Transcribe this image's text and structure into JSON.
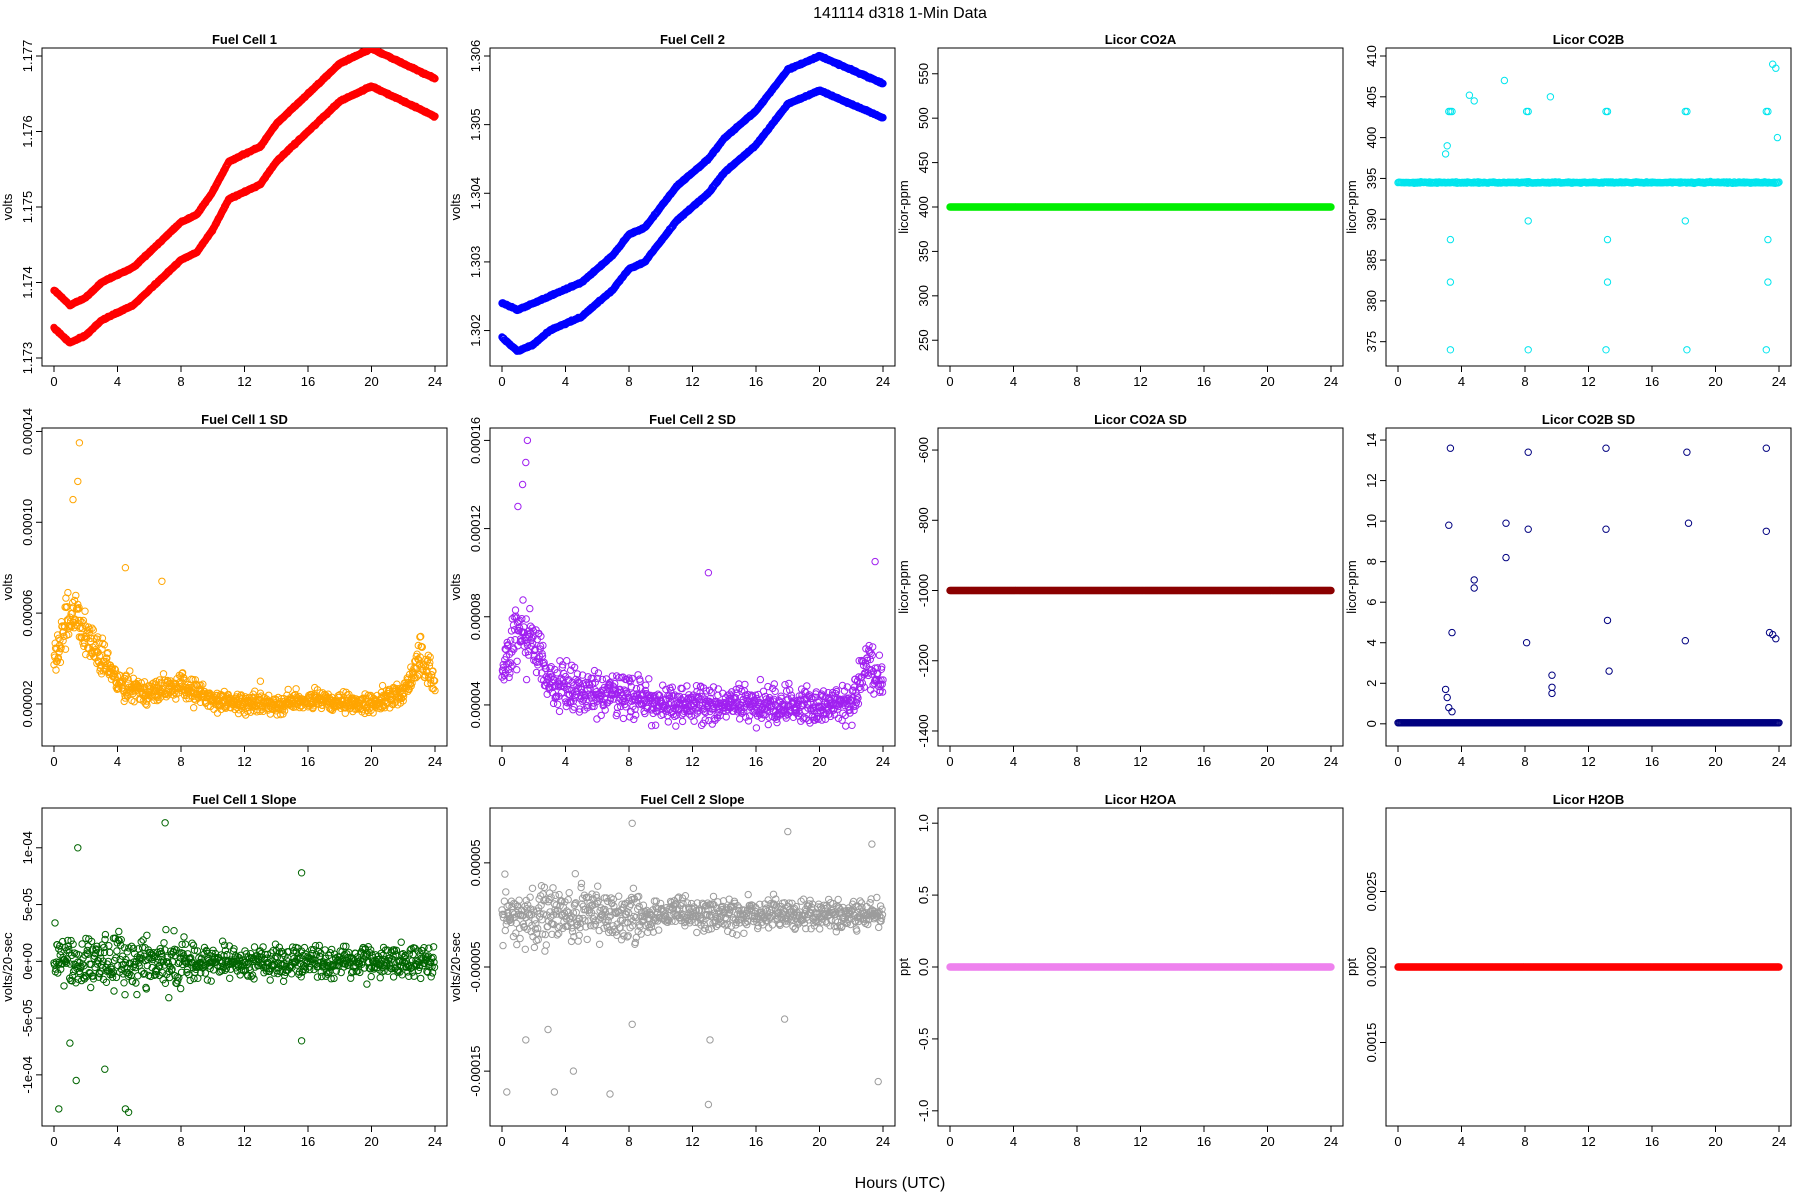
{
  "page": {
    "suptitle": "141114   d318   1-Min Data",
    "xlabel": "Hours (UTC)"
  },
  "chart_data": [
    {
      "type": "scatter",
      "title": "Fuel Cell 1",
      "xlabel": "",
      "ylabel": "volts",
      "xlim": [
        0,
        24
      ],
      "ylim": [
        1.173,
        1.177
      ],
      "xticks": [
        0,
        4,
        8,
        12,
        16,
        20,
        24
      ],
      "yticks": [
        "1.173",
        "1.174",
        "1.175",
        "1.176",
        "1.177"
      ],
      "color": "#ff0000",
      "marker": "open-circle",
      "series": [
        {
          "x": [
            0,
            1,
            2,
            3,
            4,
            5,
            6,
            7,
            8,
            9,
            10,
            11,
            12,
            13,
            14,
            15,
            16,
            17,
            18,
            19,
            20,
            21,
            22,
            23,
            24
          ],
          "y": [
            1.1739,
            1.1737,
            1.1738,
            1.174,
            1.1741,
            1.1742,
            1.1744,
            1.1746,
            1.1748,
            1.1749,
            1.1752,
            1.1756,
            1.1757,
            1.1758,
            1.1761,
            1.1763,
            1.1765,
            1.1767,
            1.1769,
            1.177,
            1.1771,
            1.177,
            1.1769,
            1.1768,
            1.1767
          ]
        },
        {
          "x": [
            0,
            1,
            2,
            3,
            4,
            5,
            6,
            7,
            8,
            9,
            10,
            11,
            12,
            13,
            14,
            15,
            16,
            17,
            18,
            19,
            20,
            21,
            22,
            23,
            24
          ],
          "y": [
            1.1734,
            1.1732,
            1.1733,
            1.1735,
            1.1736,
            1.1737,
            1.1739,
            1.1741,
            1.1743,
            1.1744,
            1.1747,
            1.1751,
            1.1752,
            1.1753,
            1.1756,
            1.1758,
            1.176,
            1.1762,
            1.1764,
            1.1765,
            1.1766,
            1.1765,
            1.1764,
            1.1763,
            1.1762
          ]
        }
      ]
    },
    {
      "type": "scatter",
      "title": "Fuel Cell 2",
      "xlabel": "",
      "ylabel": "volts",
      "xlim": [
        0,
        24
      ],
      "ylim": [
        1.3016,
        1.306
      ],
      "xticks": [
        0,
        4,
        8,
        12,
        16,
        20,
        24
      ],
      "yticks": [
        "1.302",
        "1.303",
        "1.304",
        "1.305",
        "1.306"
      ],
      "color": "#0000ff",
      "marker": "open-circle",
      "series": [
        {
          "x": [
            0,
            1,
            2,
            3,
            4,
            5,
            6,
            7,
            8,
            9,
            10,
            11,
            12,
            13,
            14,
            15,
            16,
            17,
            18,
            19,
            20,
            21,
            22,
            23,
            24
          ],
          "y": [
            1.3024,
            1.3023,
            1.3024,
            1.3025,
            1.3026,
            1.3027,
            1.3029,
            1.3031,
            1.3034,
            1.3035,
            1.3038,
            1.3041,
            1.3043,
            1.3045,
            1.3048,
            1.305,
            1.3052,
            1.3055,
            1.3058,
            1.3059,
            1.306,
            1.3059,
            1.3058,
            1.3057,
            1.3056
          ]
        },
        {
          "x": [
            0,
            1,
            2,
            3,
            4,
            5,
            6,
            7,
            8,
            9,
            10,
            11,
            12,
            13,
            14,
            15,
            16,
            17,
            18,
            19,
            20,
            21,
            22,
            23,
            24
          ],
          "y": [
            1.3019,
            1.3017,
            1.3018,
            1.302,
            1.3021,
            1.3022,
            1.3024,
            1.3026,
            1.3029,
            1.303,
            1.3033,
            1.3036,
            1.3038,
            1.304,
            1.3043,
            1.3045,
            1.3047,
            1.305,
            1.3053,
            1.3054,
            1.3055,
            1.3054,
            1.3053,
            1.3052,
            1.3051
          ]
        }
      ]
    },
    {
      "type": "scatter",
      "title": "Licor CO2A",
      "xlabel": "",
      "ylabel": "licor-ppm",
      "xlim": [
        0,
        24
      ],
      "ylim": [
        230,
        570
      ],
      "xticks": [
        0,
        4,
        8,
        12,
        16,
        20,
        24
      ],
      "yticks": [
        "250",
        "300",
        "350",
        "400",
        "450",
        "500",
        "550"
      ],
      "color": "#00ee00",
      "marker": "filled-circle",
      "series": [
        {
          "x": [
            0,
            24
          ],
          "y": [
            400,
            400
          ],
          "constant": true
        }
      ]
    },
    {
      "type": "scatter",
      "title": "Licor CO2B",
      "xlabel": "",
      "ylabel": "licor-ppm",
      "xlim": [
        0,
        24
      ],
      "ylim": [
        373,
        410
      ],
      "xticks": [
        0,
        4,
        8,
        12,
        16,
        20,
        24
      ],
      "yticks": [
        "375",
        "380",
        "385",
        "390",
        "395",
        "400",
        "405",
        "410"
      ],
      "color": "#00e5ee",
      "marker": "open-circle",
      "series": [
        {
          "x": [
            0,
            24
          ],
          "y": [
            394.5,
            394.5
          ],
          "constant": true
        },
        {
          "x": [
            3.2,
            3.3,
            3.4,
            8.1,
            8.2,
            13.1,
            13.2,
            18.1,
            18.2,
            23.2,
            23.3,
            3.3,
            8.2,
            13.1,
            18.2,
            23.2,
            3.3,
            8.2,
            13.2,
            18.1,
            23.3,
            3.3,
            13.2,
            23.3,
            4.5,
            4.8,
            6.7,
            9.6,
            3,
            3.1,
            23.6,
            23.8,
            23.9
          ],
          "y": [
            403.2,
            403.2,
            403.2,
            403.2,
            403.2,
            403.2,
            403.2,
            403.2,
            403.2,
            403.2,
            403.2,
            374,
            374,
            374,
            374,
            374,
            387.5,
            389.8,
            387.5,
            389.8,
            387.5,
            382.3,
            382.3,
            382.3,
            405.2,
            404.5,
            407,
            405,
            398,
            399,
            409,
            408.5,
            400
          ]
        }
      ]
    },
    {
      "type": "scatter",
      "title": "Fuel Cell 1 SD",
      "xlabel": "",
      "ylabel": "volts",
      "xlim": [
        0,
        24
      ],
      "ylim": [
        5e-06,
        0.000138
      ],
      "xticks": [
        0,
        4,
        8,
        12,
        16,
        20,
        24
      ],
      "yticks": [
        "0.00002",
        "0.00006",
        "0.00010",
        "0.00014"
      ],
      "color": "#ffa500",
      "marker": "open-circle",
      "series": [
        {
          "x": [
            0,
            1,
            2,
            3,
            4,
            6,
            8,
            10,
            12,
            14,
            16,
            18,
            20,
            22,
            23,
            24
          ],
          "y": [
            4e-05,
            6e-05,
            5e-05,
            4e-05,
            3e-05,
            2.5e-05,
            2.8e-05,
            2.2e-05,
            2e-05,
            2e-05,
            2.2e-05,
            2e-05,
            2e-05,
            2.5e-05,
            4e-05,
            3e-05
          ]
        },
        {
          "x": [
            1.2,
            1.5,
            1.6,
            4.5,
            6.8,
            13
          ],
          "y": [
            0.00011,
            0.000118,
            0.000135,
            8e-05,
            7.4e-05,
            3e-05
          ]
        }
      ]
    },
    {
      "type": "scatter",
      "title": "Fuel Cell 2 SD",
      "xlabel": "",
      "ylabel": "volts",
      "xlim": [
        0,
        24
      ],
      "ylim": [
        2.5e-05,
        0.000162
      ],
      "xticks": [
        0,
        4,
        8,
        12,
        16,
        20,
        24
      ],
      "yticks": [
        "0.00004",
        "0.00008",
        "0.00012",
        "0.00016"
      ],
      "color": "#a020f0",
      "marker": "open-circle",
      "series": [
        {
          "x": [
            0,
            1,
            2,
            3,
            4,
            6,
            8,
            10,
            12,
            14,
            16,
            18,
            20,
            22,
            23,
            24
          ],
          "y": [
            5.5e-05,
            7.5e-05,
            7e-05,
            5e-05,
            4.8e-05,
            4.5e-05,
            4.5e-05,
            4e-05,
            4e-05,
            4e-05,
            4e-05,
            4e-05,
            4e-05,
            4e-05,
            6e-05,
            5e-05
          ]
        },
        {
          "x": [
            1,
            1.3,
            1.5,
            1.6,
            13,
            23.5
          ],
          "y": [
            0.00013,
            0.00014,
            0.00015,
            0.00016,
            0.0001,
            0.000105
          ]
        }
      ]
    },
    {
      "type": "scatter",
      "title": "Licor CO2A SD",
      "xlabel": "",
      "ylabel": "licor-ppm",
      "xlim": [
        0,
        24
      ],
      "ylim": [
        -1420,
        -560
      ],
      "xticks": [
        0,
        4,
        8,
        12,
        16,
        20,
        24
      ],
      "yticks": [
        "-1400",
        "-1200",
        "-1000",
        "-800",
        "-600"
      ],
      "color": "#8b0000",
      "marker": "filled-circle",
      "series": [
        {
          "x": [
            0,
            24
          ],
          "y": [
            -1000,
            -1000
          ],
          "constant": true
        }
      ]
    },
    {
      "type": "scatter",
      "title": "Licor CO2B SD",
      "xlabel": "",
      "ylabel": "licor-ppm",
      "xlim": [
        0,
        24
      ],
      "ylim": [
        -0.7,
        14.2
      ],
      "xticks": [
        0,
        4,
        8,
        12,
        16,
        20,
        24
      ],
      "yticks": [
        "0",
        "2",
        "4",
        "6",
        "8",
        "10",
        "12",
        "14"
      ],
      "color": "#000080",
      "marker": "open-circle",
      "series": [
        {
          "x": [
            0,
            24
          ],
          "y": [
            0.05,
            0.05
          ],
          "constant": true
        },
        {
          "x": [
            3.3,
            8.2,
            13.1,
            18.2,
            23.2,
            3.2,
            6.8,
            8.2,
            13.1,
            18.3,
            23.2,
            3.4,
            4.8,
            4.8,
            6.8,
            8.1,
            9.7,
            9.7,
            9.7,
            13.3,
            13.2,
            18.1,
            23.4,
            23.6,
            23.8,
            3,
            3.1,
            3.2,
            3.4
          ],
          "y": [
            13.6,
            13.4,
            13.6,
            13.4,
            13.6,
            9.8,
            9.9,
            9.6,
            9.6,
            9.9,
            9.5,
            4.5,
            7.1,
            6.7,
            8.2,
            4,
            2.4,
            1.8,
            1.5,
            2.6,
            5.1,
            4.1,
            4.5,
            4.4,
            4.2,
            1.7,
            1.3,
            0.8,
            0.6
          ]
        }
      ]
    },
    {
      "type": "scatter",
      "title": "Fuel Cell 1 Slope",
      "xlabel": "",
      "ylabel": "volts/20-sec",
      "xlim": [
        0,
        24
      ],
      "ylim": [
        -0.000138,
        0.000128
      ],
      "xticks": [
        0,
        4,
        8,
        12,
        16,
        20,
        24
      ],
      "yticks": [
        "-1e-04",
        "-5e-05",
        "0e+00",
        "5e-05",
        "1e-04"
      ],
      "color": "#006400",
      "marker": "open-circle",
      "series": [
        {
          "x": [
            0,
            24
          ],
          "y": [
            0,
            0
          ],
          "spread": 4e-05
        },
        {
          "x": [
            0.3,
            1.5,
            4.5,
            4.7,
            7,
            1.4,
            3.2,
            15.6,
            1,
            15.6
          ],
          "y": [
            -0.00013,
            0.0001,
            -0.00013,
            -0.000133,
            0.000122,
            -0.000105,
            -9.5e-05,
            7.8e-05,
            -7.2e-05,
            -7e-05
          ]
        }
      ]
    },
    {
      "type": "scatter",
      "title": "Fuel Cell 2 Slope",
      "xlabel": "",
      "ylabel": "volts/20-sec",
      "xlim": [
        0,
        24
      ],
      "ylim": [
        -0.000195,
        9.5e-05
      ],
      "xticks": [
        0,
        4,
        8,
        12,
        16,
        20,
        24
      ],
      "yticks": [
        "-0.00015",
        "-0.00005",
        "0.00005"
      ],
      "color": "#9c9c9c",
      "marker": "open-circle",
      "series": [
        {
          "x": [
            0,
            24
          ],
          "y": [
            0,
            0
          ],
          "spread": 4.5e-05
        },
        {
          "x": [
            0.3,
            3.3,
            4.5,
            6.8,
            8.2,
            13,
            18,
            23.3,
            23.7,
            1.5,
            2.9,
            13.1,
            8.2,
            17.8
          ],
          "y": [
            -0.00017,
            -0.00017,
            -0.00015,
            -0.000172,
            8.8e-05,
            -0.000182,
            8e-05,
            6.8e-05,
            -0.00016,
            -0.00012,
            -0.00011,
            -0.00012,
            -0.000105,
            -0.0001
          ]
        }
      ]
    },
    {
      "type": "scatter",
      "title": "Licor H2OA",
      "xlabel": "",
      "ylabel": "ppt",
      "xlim": [
        0,
        24
      ],
      "ylim": [
        -1.05,
        1.05
      ],
      "xticks": [
        0,
        4,
        8,
        12,
        16,
        20,
        24
      ],
      "yticks": [
        "-1.0",
        "-0.5",
        "0.0",
        "0.5",
        "1.0"
      ],
      "color": "#ee82ee",
      "marker": "filled-circle",
      "series": [
        {
          "x": [
            0,
            24
          ],
          "y": [
            0,
            0
          ],
          "constant": true
        }
      ]
    },
    {
      "type": "scatter",
      "title": "Licor H2OB",
      "xlabel": "",
      "ylabel": "ppt",
      "xlim": [
        0,
        24
      ],
      "ylim": [
        0.001,
        0.003
      ],
      "xticks": [
        0,
        4,
        8,
        12,
        16,
        20,
        24
      ],
      "yticks": [
        "0.0015",
        "0.0020",
        "0.0025"
      ],
      "color": "#ff0000",
      "marker": "filled-circle",
      "series": [
        {
          "x": [
            0,
            24
          ],
          "y": [
            0.002,
            0.002
          ],
          "constant": true
        }
      ]
    }
  ]
}
